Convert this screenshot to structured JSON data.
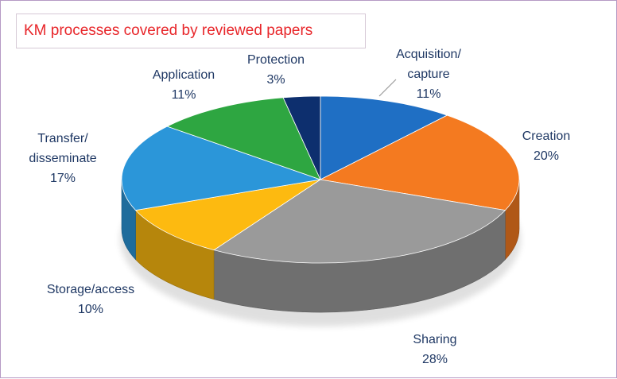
{
  "chart_data": {
    "type": "pie",
    "title": "KM processes covered by reviewed papers",
    "slices": [
      {
        "label_lines": [
          "Acquisition/",
          "capture"
        ],
        "value": 11,
        "value_label": "11%",
        "color": "#1f6fc4"
      },
      {
        "label_lines": [
          "Creation"
        ],
        "value": 20,
        "value_label": "20%",
        "color": "#f47a20"
      },
      {
        "label_lines": [
          "Sharing"
        ],
        "value": 28,
        "value_label": "28%",
        "color": "#9a9a9a"
      },
      {
        "label_lines": [
          "Storage/access"
        ],
        "value": 10,
        "value_label": "10%",
        "color": "#fdba10"
      },
      {
        "label_lines": [
          "Transfer/",
          "disseminate"
        ],
        "value": 17,
        "value_label": "17%",
        "color": "#2b96d9"
      },
      {
        "label_lines": [
          "Application"
        ],
        "value": 11,
        "value_label": "11%",
        "color": "#2ea641"
      },
      {
        "label_lines": [
          "Protection"
        ],
        "value": 3,
        "value_label": "3%",
        "color": "#0d2f6e"
      }
    ],
    "legend": "none",
    "style": "3d-pie"
  }
}
